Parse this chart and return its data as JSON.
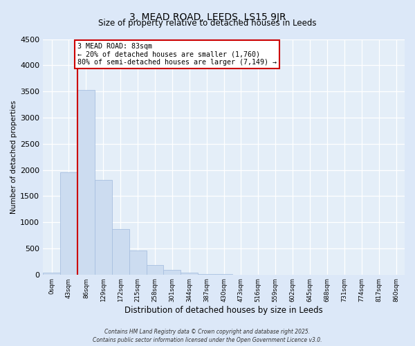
{
  "title": "3, MEAD ROAD, LEEDS, LS15 9JR",
  "subtitle": "Size of property relative to detached houses in Leeds",
  "xlabel": "Distribution of detached houses by size in Leeds",
  "ylabel": "Number of detached properties",
  "bar_labels": [
    "0sqm",
    "43sqm",
    "86sqm",
    "129sqm",
    "172sqm",
    "215sqm",
    "258sqm",
    "301sqm",
    "344sqm",
    "387sqm",
    "430sqm",
    "473sqm",
    "516sqm",
    "559sqm",
    "602sqm",
    "645sqm",
    "688sqm",
    "731sqm",
    "774sqm",
    "817sqm",
    "860sqm"
  ],
  "bar_values": [
    30,
    1950,
    3530,
    1810,
    870,
    460,
    180,
    90,
    40,
    15,
    5,
    0,
    0,
    0,
    0,
    0,
    0,
    0,
    0,
    0,
    0
  ],
  "bar_color": "#ccdcf0",
  "bar_edgecolor": "#a8c0e0",
  "vline_color": "#cc0000",
  "vline_x_index": 2,
  "ylim": [
    0,
    4500
  ],
  "yticks": [
    0,
    500,
    1000,
    1500,
    2000,
    2500,
    3000,
    3500,
    4000,
    4500
  ],
  "annotation_title": "3 MEAD ROAD: 83sqm",
  "annotation_line1": "← 20% of detached houses are smaller (1,760)",
  "annotation_line2": "80% of semi-detached houses are larger (7,149) →",
  "annotation_box_facecolor": "#ffffff",
  "annotation_box_edgecolor": "#cc0000",
  "footer_line1": "Contains HM Land Registry data © Crown copyright and database right 2025.",
  "footer_line2": "Contains public sector information licensed under the Open Government Licence v3.0.",
  "fig_facecolor": "#dce8f8",
  "plot_facecolor": "#e4eef8"
}
